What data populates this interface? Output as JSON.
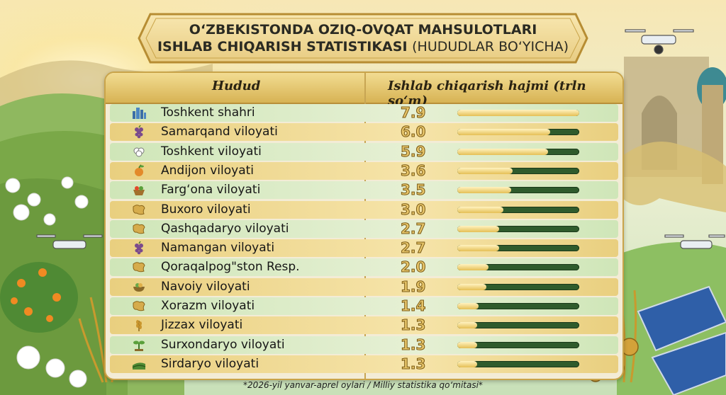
{
  "title": {
    "line1": "O‘ZBEKISTONDA OZIQ-OVQAT MAHSULOTLARI",
    "line2_bold": "ISHLAB CHIQARISH STATISTIKASI",
    "line2_rest": "(HUDUDLAR BO‘YICHA)"
  },
  "footnote": "*2026-yil yanvar-aprel oylari / Milliy statistika qo‘mitasi*",
  "colors": {
    "track": "#2f5b2c",
    "fill": "#e5bf55",
    "border": "#c9a44a"
  },
  "chart_data": {
    "type": "table",
    "columns": [
      "Hudud",
      "Ishlab chiqarish hajmi (trln so‘m)"
    ],
    "max": 7.9,
    "rows": [
      {
        "region": "Toshkent shahri",
        "value": 7.9,
        "display": "7.9",
        "icon": "city-icon"
      },
      {
        "region": "Samarqand viloyati",
        "value": 6.0,
        "display": "6.0",
        "icon": "grapes-icon"
      },
      {
        "region": "Toshkent viloyati",
        "value": 5.9,
        "display": "5.9",
        "icon": "cotton-icon"
      },
      {
        "region": "Andijon viloyati",
        "value": 3.6,
        "display": "3.6",
        "icon": "fruit-icon"
      },
      {
        "region": "Farg‘ona viloyati",
        "value": 3.5,
        "display": "3.5",
        "icon": "basket-icon"
      },
      {
        "region": "Buxoro viloyati",
        "value": 3.0,
        "display": "3.0",
        "icon": "map-region-icon"
      },
      {
        "region": "Qashqadaryo viloyati",
        "value": 2.7,
        "display": "2.7",
        "icon": "map-region-icon"
      },
      {
        "region": "Namangan viloyati",
        "value": 2.7,
        "display": "2.7",
        "icon": "grapes-icon"
      },
      {
        "region": "Qoraqalpog\"ston Resp.",
        "value": 2.0,
        "display": "2.0",
        "icon": "map-region-icon"
      },
      {
        "region": "Navoiy viloyati",
        "value": 1.9,
        "display": "1.9",
        "icon": "bowl-icon"
      },
      {
        "region": "Xorazm viloyati",
        "value": 1.4,
        "display": "1.4",
        "icon": "map-region-icon"
      },
      {
        "region": "Jizzax viloyati",
        "value": 1.3,
        "display": "1.3",
        "icon": "wheat-icon"
      },
      {
        "region": "Surxondaryo viloyati",
        "value": 1.3,
        "display": "1.3",
        "icon": "sprout-icon"
      },
      {
        "region": "Sirdaryo viloyati",
        "value": 1.3,
        "display": "1.3",
        "icon": "field-icon"
      }
    ]
  }
}
